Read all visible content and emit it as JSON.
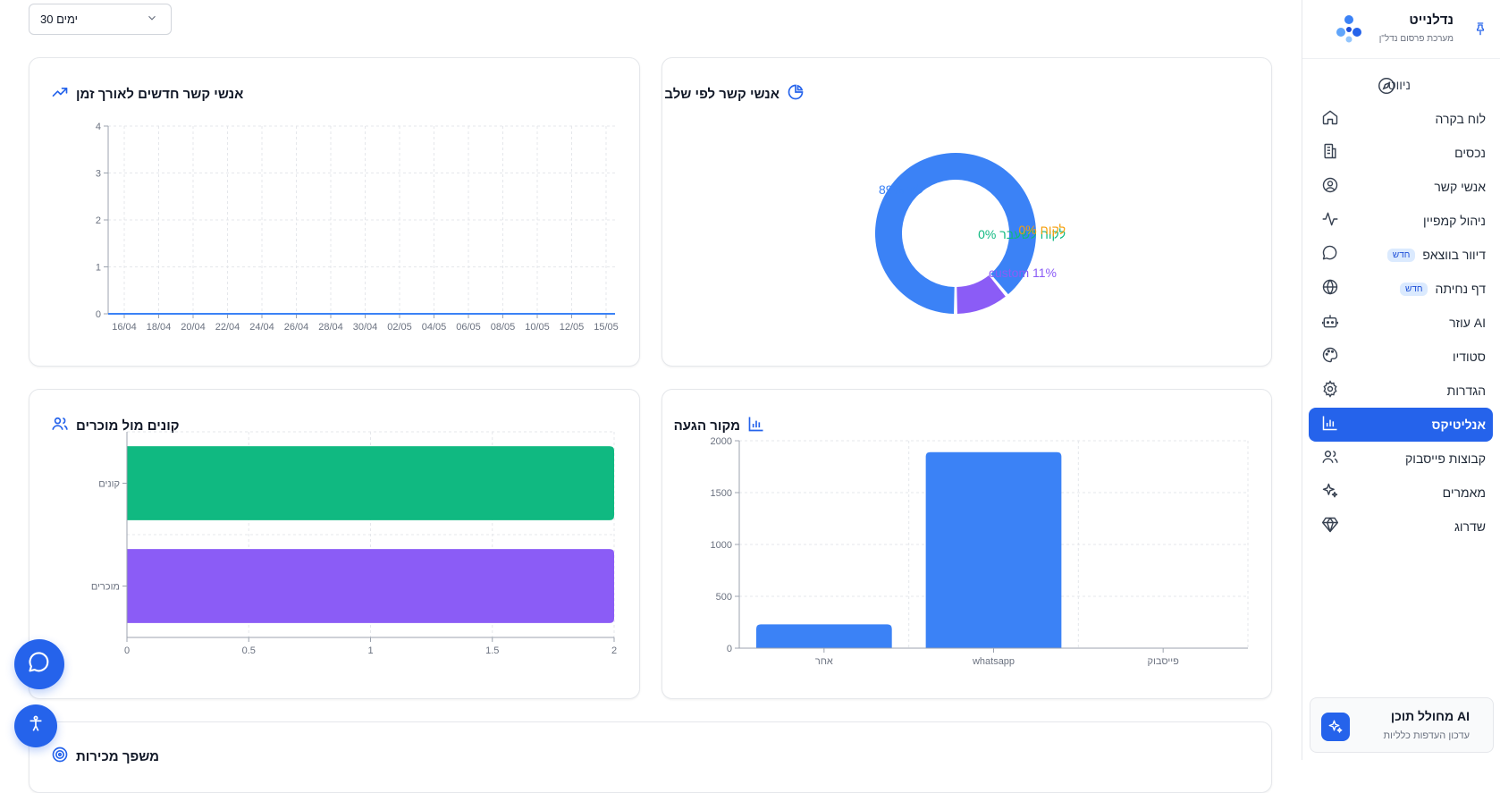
{
  "sidebar": {
    "brand": {
      "name": "נדלנייט",
      "subtitle": "מערכת פרסום נדל\"ן"
    },
    "nav_title": "ניווט",
    "items": [
      {
        "label": "לוח בקרה",
        "icon": "home-icon"
      },
      {
        "label": "נכסים",
        "icon": "building-icon"
      },
      {
        "label": "אנשי קשר",
        "icon": "user-circle-icon"
      },
      {
        "label": "ניהול קמפיין",
        "icon": "activity-icon"
      },
      {
        "label": "דיוור בווצאפ",
        "icon": "message-circle-icon",
        "badge": "חדש"
      },
      {
        "label": "דף נחיתה",
        "icon": "globe-icon",
        "badge": "חדש"
      },
      {
        "label": "עוזר AI",
        "icon": "bot-icon"
      },
      {
        "label": "סטודיו",
        "icon": "palette-icon"
      },
      {
        "label": "הגדרות",
        "icon": "gear-icon"
      },
      {
        "label": "אנליטיקס",
        "icon": "bar-chart-icon",
        "active": true
      },
      {
        "label": "קבוצות פייסבוק",
        "icon": "users-icon"
      },
      {
        "label": "מאמרים",
        "icon": "sparkles-icon"
      },
      {
        "label": "שדרוג",
        "icon": "gem-icon"
      }
    ],
    "ai_card": {
      "title": "מחולל תוכן AI",
      "subtitle": "עדכון העדפות כלליות"
    }
  },
  "filters": {
    "period": "30 ימים"
  },
  "cards": {
    "stage": {
      "title": "אנשי קשר לפי שלב"
    },
    "timeline": {
      "title": "אנשי קשר חדשים לאורך זמן"
    },
    "source": {
      "title": "מקור הגעה"
    },
    "buyers": {
      "title": "קונים מול מוכרים"
    },
    "funnel": {
      "title": "משפך מכירות"
    }
  },
  "colors": {
    "primary": "#2563eb",
    "blue": "#3b82f6",
    "green": "#10b981",
    "purple": "#8b5cf6",
    "orange": "#f59e0b"
  },
  "chart_data": [
    {
      "type": "pie",
      "labels": [
        "ליד 89%",
        "לקוח לשעבר 0%",
        "לקוח 0%",
        "custom 11%"
      ],
      "values": [
        89,
        0,
        0,
        11
      ],
      "colors": [
        "#3b82f6",
        "#10b981",
        "#f59e0b",
        "#8b5cf6"
      ]
    },
    {
      "type": "line",
      "x": [
        "16/04",
        "18/04",
        "20/04",
        "22/04",
        "24/04",
        "26/04",
        "28/04",
        "30/04",
        "02/05",
        "04/05",
        "06/05",
        "08/05",
        "10/05",
        "12/05",
        "15/05"
      ],
      "series": [
        {
          "values": [
            0,
            0,
            0,
            0,
            0,
            0,
            0,
            0,
            0,
            0,
            0,
            0,
            0,
            0,
            0
          ]
        }
      ],
      "ylim": [
        0,
        4
      ],
      "yticks": [
        0,
        1,
        2,
        3,
        4
      ]
    },
    {
      "type": "bar",
      "categories": [
        "אחר",
        "whatsapp",
        "פייסבוק"
      ],
      "values": [
        230,
        1890,
        0
      ],
      "ylim": [
        0,
        2000
      ],
      "yticks": [
        0,
        500,
        1000,
        1500,
        2000
      ]
    },
    {
      "type": "bar",
      "orientation": "horizontal",
      "categories": [
        "קונים",
        "מוכרים"
      ],
      "values": [
        2,
        2
      ],
      "colors": [
        "#10b981",
        "#8b5cf6"
      ],
      "xlim": [
        0,
        2
      ],
      "xticks": [
        0,
        0.5,
        1,
        1.5,
        2
      ]
    }
  ]
}
